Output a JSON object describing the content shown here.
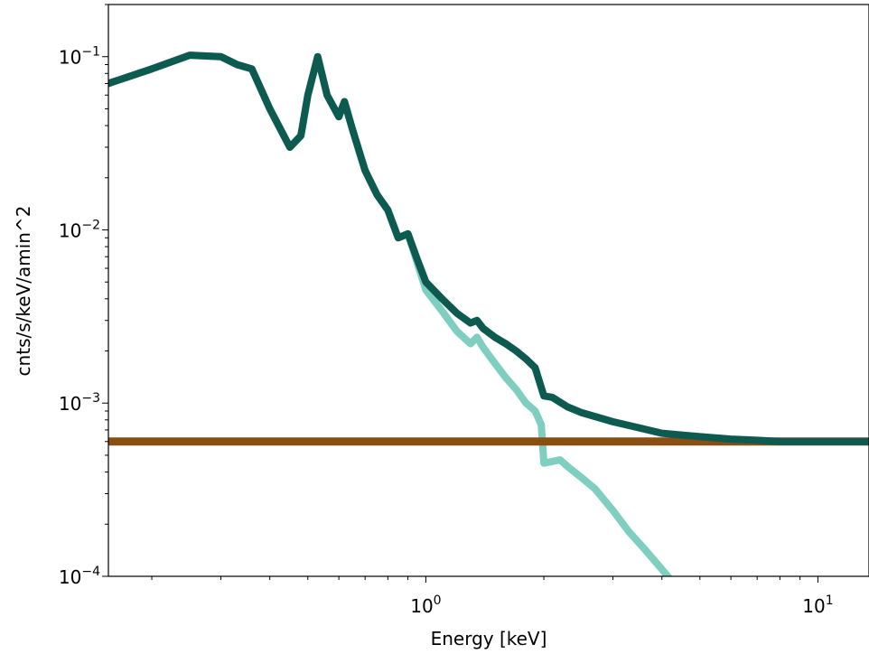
{
  "chart_data": {
    "type": "line",
    "xlabel": "Energy [keV]",
    "ylabel": "cnts/s/keV/amin^2",
    "xscale": "log",
    "yscale": "log",
    "xlim": [
      0.155,
      13.5
    ],
    "ylim": [
      0.0001,
      0.2
    ],
    "x_ticks": [
      {
        "value": 1,
        "base": "10",
        "exp": "0"
      },
      {
        "value": 10,
        "base": "10",
        "exp": "1"
      }
    ],
    "y_ticks": [
      {
        "value": 0.0001,
        "base": "10",
        "exp": "−4"
      },
      {
        "value": 0.001,
        "base": "10",
        "exp": "−3"
      },
      {
        "value": 0.01,
        "base": "10",
        "exp": "−2"
      },
      {
        "value": 0.1,
        "base": "10",
        "exp": "−1"
      }
    ],
    "grid": false,
    "legend": "none",
    "series": [
      {
        "color": "#7ecfc0",
        "x": [
          0.155,
          0.2,
          0.25,
          0.3,
          0.33,
          0.36,
          0.4,
          0.45,
          0.48,
          0.5,
          0.53,
          0.56,
          0.6,
          0.62,
          0.65,
          0.7,
          0.75,
          0.8,
          0.85,
          0.9,
          0.95,
          1.0,
          1.1,
          1.2,
          1.3,
          1.35,
          1.4,
          1.5,
          1.6,
          1.7,
          1.8,
          1.9,
          1.97,
          2.0,
          2.1,
          2.2,
          2.3,
          2.5,
          2.7,
          3.0,
          3.3,
          3.6,
          4.0,
          4.3,
          4.5
        ],
        "y": [
          0.07,
          0.085,
          0.102,
          0.1,
          0.09,
          0.085,
          0.05,
          0.03,
          0.035,
          0.06,
          0.1,
          0.06,
          0.045,
          0.055,
          0.038,
          0.022,
          0.016,
          0.013,
          0.009,
          0.0095,
          0.0065,
          0.0045,
          0.0034,
          0.0026,
          0.0022,
          0.0024,
          0.0021,
          0.0017,
          0.0014,
          0.0012,
          0.001,
          0.0009,
          0.00075,
          0.00045,
          0.00046,
          0.00047,
          0.00043,
          0.00037,
          0.00032,
          0.00024,
          0.00018,
          0.000145,
          0.00011,
          9e-05,
          8e-05
        ]
      },
      {
        "color": "#8b4e12",
        "x": [
          0.155,
          1.0,
          13.5
        ],
        "y": [
          0.0006,
          0.0006,
          0.0006
        ]
      },
      {
        "color": "#0d5a50",
        "x": [
          0.155,
          0.2,
          0.25,
          0.3,
          0.33,
          0.36,
          0.4,
          0.45,
          0.48,
          0.5,
          0.53,
          0.56,
          0.6,
          0.62,
          0.65,
          0.7,
          0.75,
          0.8,
          0.85,
          0.9,
          0.95,
          1.0,
          1.1,
          1.2,
          1.3,
          1.35,
          1.4,
          1.5,
          1.6,
          1.7,
          1.8,
          1.9,
          2.0,
          2.1,
          2.3,
          2.5,
          3.0,
          3.5,
          4.0,
          5.0,
          6.0,
          7.0,
          8.0,
          9.0,
          10.0,
          13.5
        ],
        "y": [
          0.07,
          0.085,
          0.102,
          0.1,
          0.09,
          0.085,
          0.05,
          0.03,
          0.035,
          0.06,
          0.1,
          0.06,
          0.045,
          0.055,
          0.038,
          0.022,
          0.016,
          0.013,
          0.009,
          0.0095,
          0.0068,
          0.005,
          0.004,
          0.0033,
          0.0029,
          0.003,
          0.0027,
          0.0024,
          0.0022,
          0.002,
          0.0018,
          0.0016,
          0.0011,
          0.00108,
          0.00095,
          0.00088,
          0.00078,
          0.00072,
          0.00067,
          0.00064,
          0.00062,
          0.00061,
          0.0006,
          0.0006,
          0.0006,
          0.0006
        ]
      }
    ]
  }
}
